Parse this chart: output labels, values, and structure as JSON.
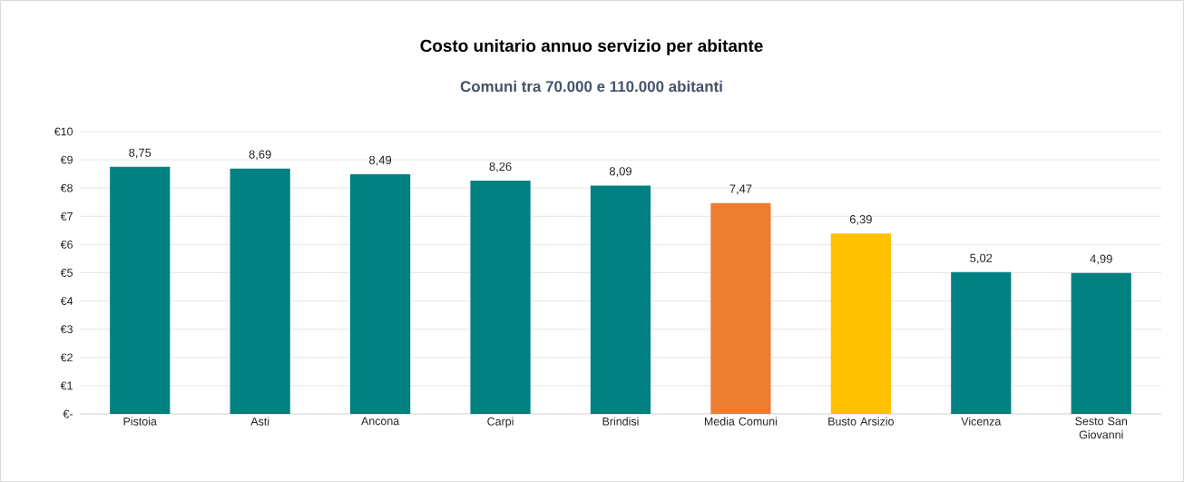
{
  "chart_data": {
    "type": "bar",
    "title": "Costo unitario annuo servizio per abitante",
    "subtitle": "Comuni tra 70.000 e 110.000 abitanti",
    "categories": [
      "Pistoia",
      "Asti",
      "Ancona",
      "Carpi",
      "Brindisi",
      "Media Comuni",
      "Busto Arsizio",
      "Vicenza",
      "Sesto San Giovanni"
    ],
    "values": [
      8.75,
      8.69,
      8.49,
      8.26,
      8.09,
      7.47,
      6.39,
      5.02,
      4.99
    ],
    "colors": [
      "#008080",
      "#008080",
      "#008080",
      "#008080",
      "#008080",
      "#ed7d31",
      "#ffc000",
      "#008080",
      "#008080"
    ],
    "value_labels": [
      "8,75",
      "8,69",
      "8,49",
      "8,26",
      "8,09",
      "7,47",
      "6,39",
      "5,02",
      "4,99"
    ],
    "ylim": [
      0,
      10
    ],
    "yticks": [
      {
        "value": 0,
        "label": "€-"
      },
      {
        "value": 1,
        "label": "€1"
      },
      {
        "value": 2,
        "label": "€2"
      },
      {
        "value": 3,
        "label": "€3"
      },
      {
        "value": 4,
        "label": "€4"
      },
      {
        "value": 5,
        "label": "€5"
      },
      {
        "value": 6,
        "label": "€6"
      },
      {
        "value": 7,
        "label": "€7"
      },
      {
        "value": 8,
        "label": "€8"
      },
      {
        "value": 9,
        "label": "€9"
      },
      {
        "value": 10,
        "label": "€10"
      }
    ],
    "grid": "y"
  }
}
